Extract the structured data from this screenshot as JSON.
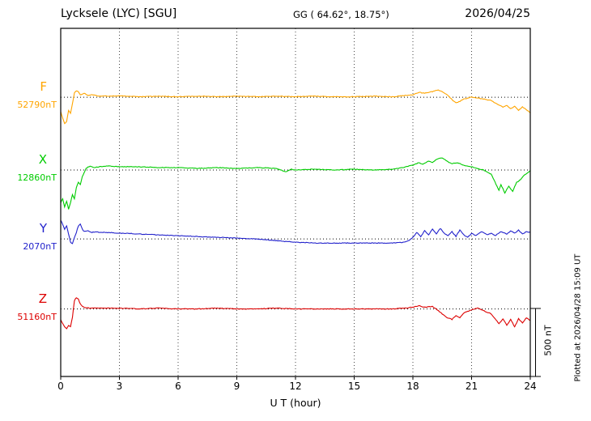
{
  "chart_data": {
    "type": "line",
    "title": "Lycksele (LYC)  [SGU]",
    "coords_label": "GG ( 64.62°,  18.75°)",
    "date": "2026/04/25",
    "xlabel": "U T (hour)",
    "plotted_note": "Plotted at 2026/04/28 15:09 UT",
    "scale_label": "500 nT",
    "scale_bar_nT": 500,
    "xlim": [
      0,
      24
    ],
    "x_ticks": [
      0,
      3,
      6,
      9,
      12,
      15,
      18,
      21,
      24
    ],
    "grid": "dotted vertical lines at hour ticks, dotted horizontal baseline per component",
    "legend_position": "left-gutter component labels",
    "series": [
      {
        "name": "F",
        "base_label": "52790nT",
        "color": "#ffa500",
        "baseline_frac": 0.198,
        "units": "nT deviation from 52790 nT baseline",
        "points": [
          [
            0,
            -108
          ],
          [
            0.1,
            -150
          ],
          [
            0.2,
            -192
          ],
          [
            0.3,
            -180
          ],
          [
            0.4,
            -96
          ],
          [
            0.5,
            -120
          ],
          [
            0.6,
            -48
          ],
          [
            0.7,
            30
          ],
          [
            0.8,
            48
          ],
          [
            0.9,
            42
          ],
          [
            1,
            18
          ],
          [
            1.2,
            30
          ],
          [
            1.4,
            12
          ],
          [
            1.6,
            18
          ],
          [
            2,
            8
          ],
          [
            3,
            10
          ],
          [
            4,
            4
          ],
          [
            5,
            8
          ],
          [
            6,
            4
          ],
          [
            7,
            8
          ],
          [
            8,
            4
          ],
          [
            9,
            8
          ],
          [
            10,
            4
          ],
          [
            11,
            8
          ],
          [
            12,
            4
          ],
          [
            13,
            8
          ],
          [
            14,
            4
          ],
          [
            15,
            4
          ],
          [
            16,
            8
          ],
          [
            17,
            4
          ],
          [
            17.5,
            12
          ],
          [
            18,
            18
          ],
          [
            18.3,
            36
          ],
          [
            18.6,
            30
          ],
          [
            19,
            42
          ],
          [
            19.3,
            54
          ],
          [
            19.5,
            42
          ],
          [
            19.8,
            12
          ],
          [
            20,
            -18
          ],
          [
            20.2,
            -42
          ],
          [
            20.4,
            -30
          ],
          [
            20.6,
            -12
          ],
          [
            20.8,
            -6
          ],
          [
            21,
            0
          ],
          [
            21.3,
            -6
          ],
          [
            21.6,
            -12
          ],
          [
            22,
            -24
          ],
          [
            22.3,
            -48
          ],
          [
            22.6,
            -72
          ],
          [
            22.8,
            -60
          ],
          [
            23,
            -84
          ],
          [
            23.2,
            -66
          ],
          [
            23.4,
            -96
          ],
          [
            23.6,
            -72
          ],
          [
            23.8,
            -90
          ],
          [
            24,
            -114
          ]
        ]
      },
      {
        "name": "X",
        "base_label": "12860nT",
        "color": "#00cc00",
        "baseline_frac": 0.407,
        "units": "nT deviation from 12860 nT baseline",
        "points": [
          [
            0,
            -240
          ],
          [
            0.1,
            -210
          ],
          [
            0.2,
            -270
          ],
          [
            0.3,
            -228
          ],
          [
            0.4,
            -288
          ],
          [
            0.5,
            -240
          ],
          [
            0.6,
            -180
          ],
          [
            0.7,
            -210
          ],
          [
            0.8,
            -132
          ],
          [
            0.9,
            -90
          ],
          [
            1,
            -108
          ],
          [
            1.1,
            -48
          ],
          [
            1.2,
            -18
          ],
          [
            1.3,
            12
          ],
          [
            1.5,
            30
          ],
          [
            1.7,
            18
          ],
          [
            2,
            24
          ],
          [
            2.5,
            30
          ],
          [
            3,
            24
          ],
          [
            4,
            24
          ],
          [
            5,
            18
          ],
          [
            6,
            18
          ],
          [
            7,
            12
          ],
          [
            8,
            18
          ],
          [
            9,
            12
          ],
          [
            10,
            18
          ],
          [
            11,
            12
          ],
          [
            11.5,
            -12
          ],
          [
            11.8,
            6
          ],
          [
            12,
            0
          ],
          [
            13,
            6
          ],
          [
            14,
            0
          ],
          [
            15,
            6
          ],
          [
            16,
            0
          ],
          [
            17,
            6
          ],
          [
            17.5,
            18
          ],
          [
            18,
            36
          ],
          [
            18.3,
            54
          ],
          [
            18.5,
            42
          ],
          [
            18.8,
            66
          ],
          [
            19,
            54
          ],
          [
            19.2,
            78
          ],
          [
            19.5,
            90
          ],
          [
            19.8,
            60
          ],
          [
            20,
            48
          ],
          [
            20.3,
            54
          ],
          [
            20.6,
            36
          ],
          [
            21,
            24
          ],
          [
            21.3,
            12
          ],
          [
            21.6,
            0
          ],
          [
            22,
            -30
          ],
          [
            22.2,
            -90
          ],
          [
            22.4,
            -150
          ],
          [
            22.5,
            -108
          ],
          [
            22.7,
            -168
          ],
          [
            22.9,
            -120
          ],
          [
            23.1,
            -156
          ],
          [
            23.3,
            -90
          ],
          [
            23.5,
            -72
          ],
          [
            23.7,
            -36
          ],
          [
            23.9,
            -18
          ],
          [
            24,
            -6
          ]
        ]
      },
      {
        "name": "Y",
        "base_label": "2070nT",
        "color": "#2222cc",
        "baseline_frac": 0.605,
        "units": "nT deviation from 2070 nT baseline",
        "points": [
          [
            0,
            138
          ],
          [
            0.1,
            108
          ],
          [
            0.2,
            72
          ],
          [
            0.3,
            96
          ],
          [
            0.4,
            36
          ],
          [
            0.5,
            -24
          ],
          [
            0.6,
            -36
          ],
          [
            0.7,
            12
          ],
          [
            0.8,
            48
          ],
          [
            0.9,
            96
          ],
          [
            1,
            108
          ],
          [
            1.1,
            72
          ],
          [
            1.2,
            54
          ],
          [
            1.4,
            60
          ],
          [
            1.6,
            48
          ],
          [
            1.8,
            54
          ],
          [
            2,
            48
          ],
          [
            2.5,
            48
          ],
          [
            3,
            42
          ],
          [
            3.5,
            42
          ],
          [
            4,
            36
          ],
          [
            5,
            30
          ],
          [
            6,
            24
          ],
          [
            7,
            18
          ],
          [
            8,
            12
          ],
          [
            9,
            6
          ],
          [
            10,
            0
          ],
          [
            11,
            -12
          ],
          [
            12,
            -24
          ],
          [
            13,
            -30
          ],
          [
            14,
            -30
          ],
          [
            15,
            -30
          ],
          [
            16,
            -30
          ],
          [
            17,
            -30
          ],
          [
            17.5,
            -24
          ],
          [
            17.8,
            -12
          ],
          [
            18,
            12
          ],
          [
            18.2,
            48
          ],
          [
            18.4,
            18
          ],
          [
            18.6,
            60
          ],
          [
            18.8,
            30
          ],
          [
            19,
            72
          ],
          [
            19.2,
            36
          ],
          [
            19.4,
            78
          ],
          [
            19.6,
            42
          ],
          [
            19.8,
            24
          ],
          [
            20,
            54
          ],
          [
            20.2,
            18
          ],
          [
            20.4,
            66
          ],
          [
            20.6,
            30
          ],
          [
            20.8,
            12
          ],
          [
            21,
            42
          ],
          [
            21.2,
            24
          ],
          [
            21.5,
            54
          ],
          [
            21.8,
            30
          ],
          [
            22,
            42
          ],
          [
            22.2,
            24
          ],
          [
            22.5,
            54
          ],
          [
            22.8,
            36
          ],
          [
            23,
            60
          ],
          [
            23.2,
            42
          ],
          [
            23.4,
            66
          ],
          [
            23.6,
            36
          ],
          [
            23.8,
            54
          ],
          [
            24,
            48
          ]
        ]
      },
      {
        "name": "Z",
        "base_label": "51160nT",
        "color": "#dd0000",
        "baseline_frac": 0.806,
        "units": "nT deviation from 51160 nT baseline",
        "points": [
          [
            0,
            -78
          ],
          [
            0.1,
            -108
          ],
          [
            0.2,
            -132
          ],
          [
            0.3,
            -144
          ],
          [
            0.4,
            -120
          ],
          [
            0.5,
            -132
          ],
          [
            0.6,
            -60
          ],
          [
            0.7,
            60
          ],
          [
            0.8,
            84
          ],
          [
            0.9,
            72
          ],
          [
            1,
            36
          ],
          [
            1.1,
            18
          ],
          [
            1.2,
            12
          ],
          [
            1.5,
            6
          ],
          [
            2,
            6
          ],
          [
            3,
            6
          ],
          [
            4,
            0
          ],
          [
            5,
            6
          ],
          [
            6,
            0
          ],
          [
            7,
            0
          ],
          [
            8,
            6
          ],
          [
            9,
            0
          ],
          [
            10,
            0
          ],
          [
            11,
            6
          ],
          [
            12,
            0
          ],
          [
            13,
            0
          ],
          [
            14,
            0
          ],
          [
            15,
            0
          ],
          [
            16,
            0
          ],
          [
            17,
            0
          ],
          [
            17.5,
            6
          ],
          [
            18,
            12
          ],
          [
            18.3,
            24
          ],
          [
            18.6,
            12
          ],
          [
            19,
            18
          ],
          [
            19.3,
            -12
          ],
          [
            19.5,
            -36
          ],
          [
            19.7,
            -60
          ],
          [
            20,
            -78
          ],
          [
            20.2,
            -48
          ],
          [
            20.4,
            -66
          ],
          [
            20.6,
            -30
          ],
          [
            20.8,
            -18
          ],
          [
            21,
            -6
          ],
          [
            21.3,
            6
          ],
          [
            21.6,
            -12
          ],
          [
            22,
            -36
          ],
          [
            22.2,
            -72
          ],
          [
            22.4,
            -108
          ],
          [
            22.6,
            -72
          ],
          [
            22.8,
            -120
          ],
          [
            23,
            -78
          ],
          [
            23.2,
            -132
          ],
          [
            23.4,
            -72
          ],
          [
            23.6,
            -102
          ],
          [
            23.8,
            -66
          ],
          [
            24,
            -84
          ]
        ]
      }
    ]
  }
}
